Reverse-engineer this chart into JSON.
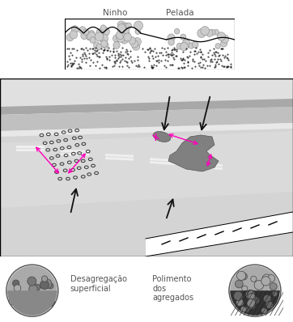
{
  "title_ninho": "Ninho",
  "title_pelada": "Pelada",
  "label_desagregacao": "Desagregação\nsuperficial",
  "label_polimento": "Polimento\ndos\nagregados",
  "bg_color": "#ffffff",
  "arrow_color": "#1a1a1a",
  "magenta_color": "#ff00bb"
}
